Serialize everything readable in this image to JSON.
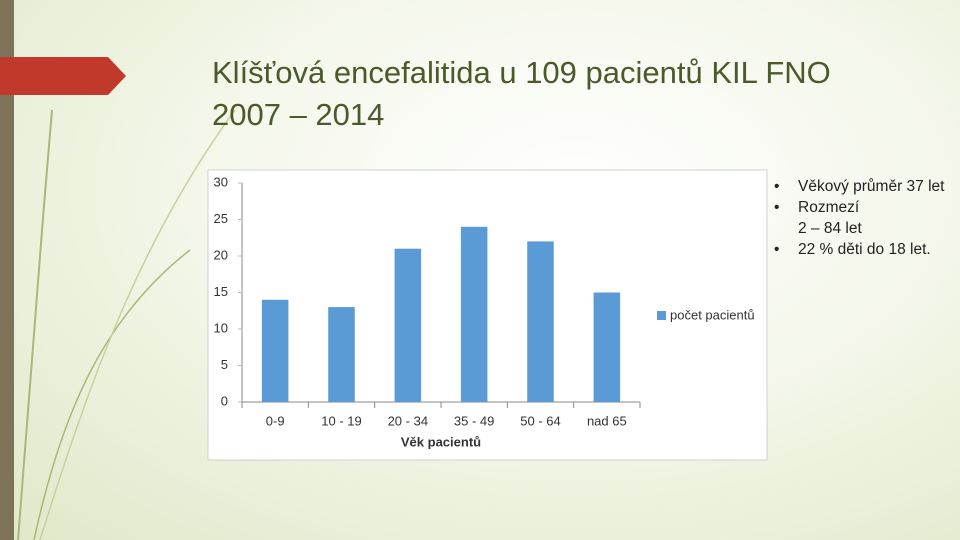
{
  "title_lines": [
    "Klíšťová encefalitida u 109 pacientů KIL FNO",
    "2007 – 2014"
  ],
  "bullets": [
    "Věkový průměr 37 let",
    "Rozmezí",
    "2 – 84 let",
    "22 % děti do 18 let."
  ],
  "chart_data": {
    "type": "bar",
    "categories": [
      "0-9",
      "10 - 19",
      "20 - 34",
      "35 - 49",
      "50 - 64",
      "nad 65"
    ],
    "series": [
      {
        "name": "počet pacientů",
        "color": "#5b9bd5",
        "values": [
          14,
          13,
          21,
          24,
          22,
          15
        ]
      }
    ],
    "xlabel": "Věk pacientů",
    "ylim": [
      0,
      30
    ],
    "yticks": [
      0,
      5,
      10,
      15,
      20,
      25,
      30
    ],
    "grid": false,
    "legend": "right"
  }
}
